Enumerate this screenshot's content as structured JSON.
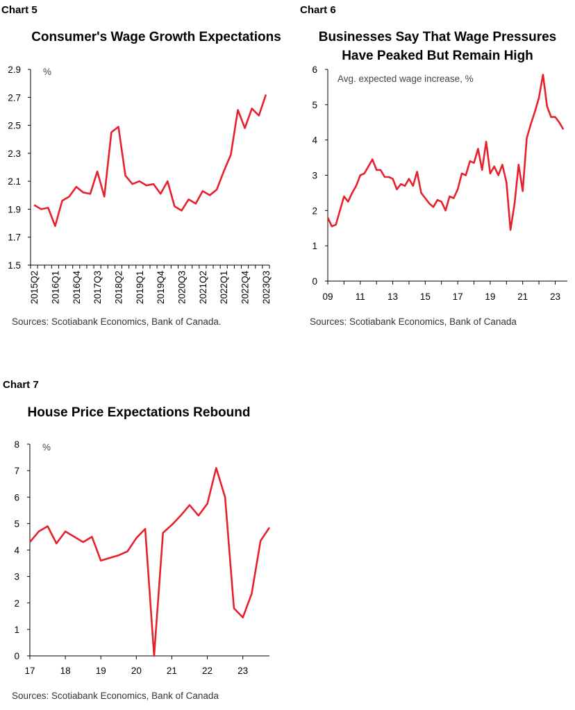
{
  "chart5": {
    "label": "Chart 5",
    "source": "Sources: Scotiabank Economics, Bank of Canada."
  },
  "chart6": {
    "label": "Chart 6",
    "source": "Sources: Scotiabank Economics, Bank of Canada"
  },
  "chart7": {
    "label": "Chart 7",
    "source": "Sources: Scotiabank Economics, Bank of Canada"
  },
  "chart_data": [
    {
      "type": "line",
      "title": "Consumer's Wage Growth Expectations",
      "unit_label": "%",
      "ylim": [
        1.5,
        2.9
      ],
      "yticks": [
        "1.5",
        "1.7",
        "1.9",
        "2.1",
        "2.3",
        "2.5",
        "2.7",
        "2.9"
      ],
      "xtick_labels": [
        "2015Q2",
        "2016Q1",
        "2016Q4",
        "2017Q3",
        "2018Q2",
        "2019Q1",
        "2019Q4",
        "2020Q3",
        "2021Q2",
        "2022Q1",
        "2022Q4",
        "2023Q3"
      ],
      "x": [
        "2015Q2",
        "2015Q3",
        "2015Q4",
        "2016Q1",
        "2016Q2",
        "2016Q3",
        "2016Q4",
        "2017Q1",
        "2017Q2",
        "2017Q3",
        "2017Q4",
        "2018Q1",
        "2018Q2",
        "2018Q3",
        "2018Q4",
        "2019Q1",
        "2019Q2",
        "2019Q3",
        "2019Q4",
        "2020Q1",
        "2020Q2",
        "2020Q3",
        "2020Q4",
        "2021Q1",
        "2021Q2",
        "2021Q3",
        "2021Q4",
        "2022Q1",
        "2022Q2",
        "2022Q3",
        "2022Q4",
        "2023Q1",
        "2023Q2",
        "2023Q3"
      ],
      "series": [
        {
          "values": [
            1.93,
            1.9,
            1.91,
            1.78,
            1.96,
            1.99,
            2.06,
            2.02,
            2.01,
            2.17,
            1.99,
            2.45,
            2.49,
            2.14,
            2.08,
            2.1,
            2.07,
            2.08,
            2.01,
            2.1,
            1.92,
            1.89,
            1.97,
            1.94,
            2.03,
            2.0,
            2.04,
            2.17,
            2.29,
            2.61,
            2.48,
            2.62,
            2.57,
            2.72
          ]
        }
      ],
      "color": "#e8202e"
    },
    {
      "type": "line",
      "title": "Businesses Say That Wage Pressures Have Peaked But Remain High",
      "annotation": "Avg. expected wage increase, %",
      "ylim": [
        0,
        6
      ],
      "yticks": [
        "0",
        "1",
        "2",
        "3",
        "4",
        "5",
        "6"
      ],
      "xlim": [
        2009.0,
        2023.75
      ],
      "xtick_labels": [
        "09",
        "11",
        "13",
        "15",
        "17",
        "19",
        "21",
        "23"
      ],
      "x": [
        2009.0,
        2009.25,
        2009.5,
        2009.75,
        2010.0,
        2010.25,
        2010.5,
        2010.75,
        2011.0,
        2011.25,
        2011.5,
        2011.75,
        2012.0,
        2012.25,
        2012.5,
        2012.75,
        2013.0,
        2013.25,
        2013.5,
        2013.75,
        2014.0,
        2014.25,
        2014.5,
        2014.75,
        2015.0,
        2015.25,
        2015.5,
        2015.75,
        2016.0,
        2016.25,
        2016.5,
        2016.75,
        2017.0,
        2017.25,
        2017.5,
        2017.75,
        2018.0,
        2018.25,
        2018.5,
        2018.75,
        2019.0,
        2019.25,
        2019.5,
        2019.75,
        2020.0,
        2020.25,
        2020.5,
        2020.75,
        2021.0,
        2021.25,
        2021.5,
        2021.75,
        2022.0,
        2022.25,
        2022.5,
        2022.75,
        2023.0,
        2023.25,
        2023.5
      ],
      "series": [
        {
          "values": [
            1.8,
            1.55,
            1.6,
            2.0,
            2.4,
            2.25,
            2.5,
            2.7,
            3.0,
            3.05,
            3.25,
            3.45,
            3.15,
            3.15,
            2.95,
            2.95,
            2.9,
            2.6,
            2.75,
            2.7,
            2.9,
            2.7,
            3.1,
            2.5,
            2.35,
            2.2,
            2.1,
            2.3,
            2.25,
            2.0,
            2.4,
            2.35,
            2.6,
            3.05,
            3.0,
            3.4,
            3.35,
            3.75,
            3.15,
            3.95,
            3.05,
            3.25,
            3.0,
            3.3,
            2.8,
            1.45,
            2.2,
            3.3,
            2.55,
            4.05,
            4.45,
            4.8,
            5.2,
            5.85,
            4.95,
            4.65,
            4.65,
            4.5,
            4.3
          ]
        }
      ],
      "color": "#e8202e"
    },
    {
      "type": "line",
      "title": "House Price Expectations Rebound",
      "unit_label": "%",
      "ylim": [
        0,
        8
      ],
      "yticks": [
        "0",
        "1",
        "2",
        "3",
        "4",
        "5",
        "6",
        "7",
        "8"
      ],
      "xlim": [
        2017.0,
        2023.75
      ],
      "xtick_labels": [
        "17",
        "18",
        "19",
        "20",
        "21",
        "22",
        "23"
      ],
      "x": [
        2017.0,
        2017.25,
        2017.5,
        2017.75,
        2018.0,
        2018.25,
        2018.5,
        2018.75,
        2019.0,
        2019.25,
        2019.5,
        2019.75,
        2020.0,
        2020.25,
        2020.5,
        2020.75,
        2021.0,
        2021.25,
        2021.5,
        2021.75,
        2022.0,
        2022.25,
        2022.5,
        2022.75,
        2023.0,
        2023.25,
        2023.5,
        2023.75
      ],
      "series": [
        {
          "values": [
            4.3,
            4.7,
            4.9,
            4.25,
            4.7,
            4.5,
            4.3,
            4.5,
            3.6,
            3.7,
            3.8,
            3.95,
            4.45,
            4.8,
            0.0,
            4.65,
            4.95,
            5.3,
            5.7,
            5.3,
            5.75,
            7.1,
            6.0,
            1.8,
            1.45,
            2.35,
            4.35,
            4.85
          ]
        }
      ],
      "color": "#e8202e"
    }
  ]
}
